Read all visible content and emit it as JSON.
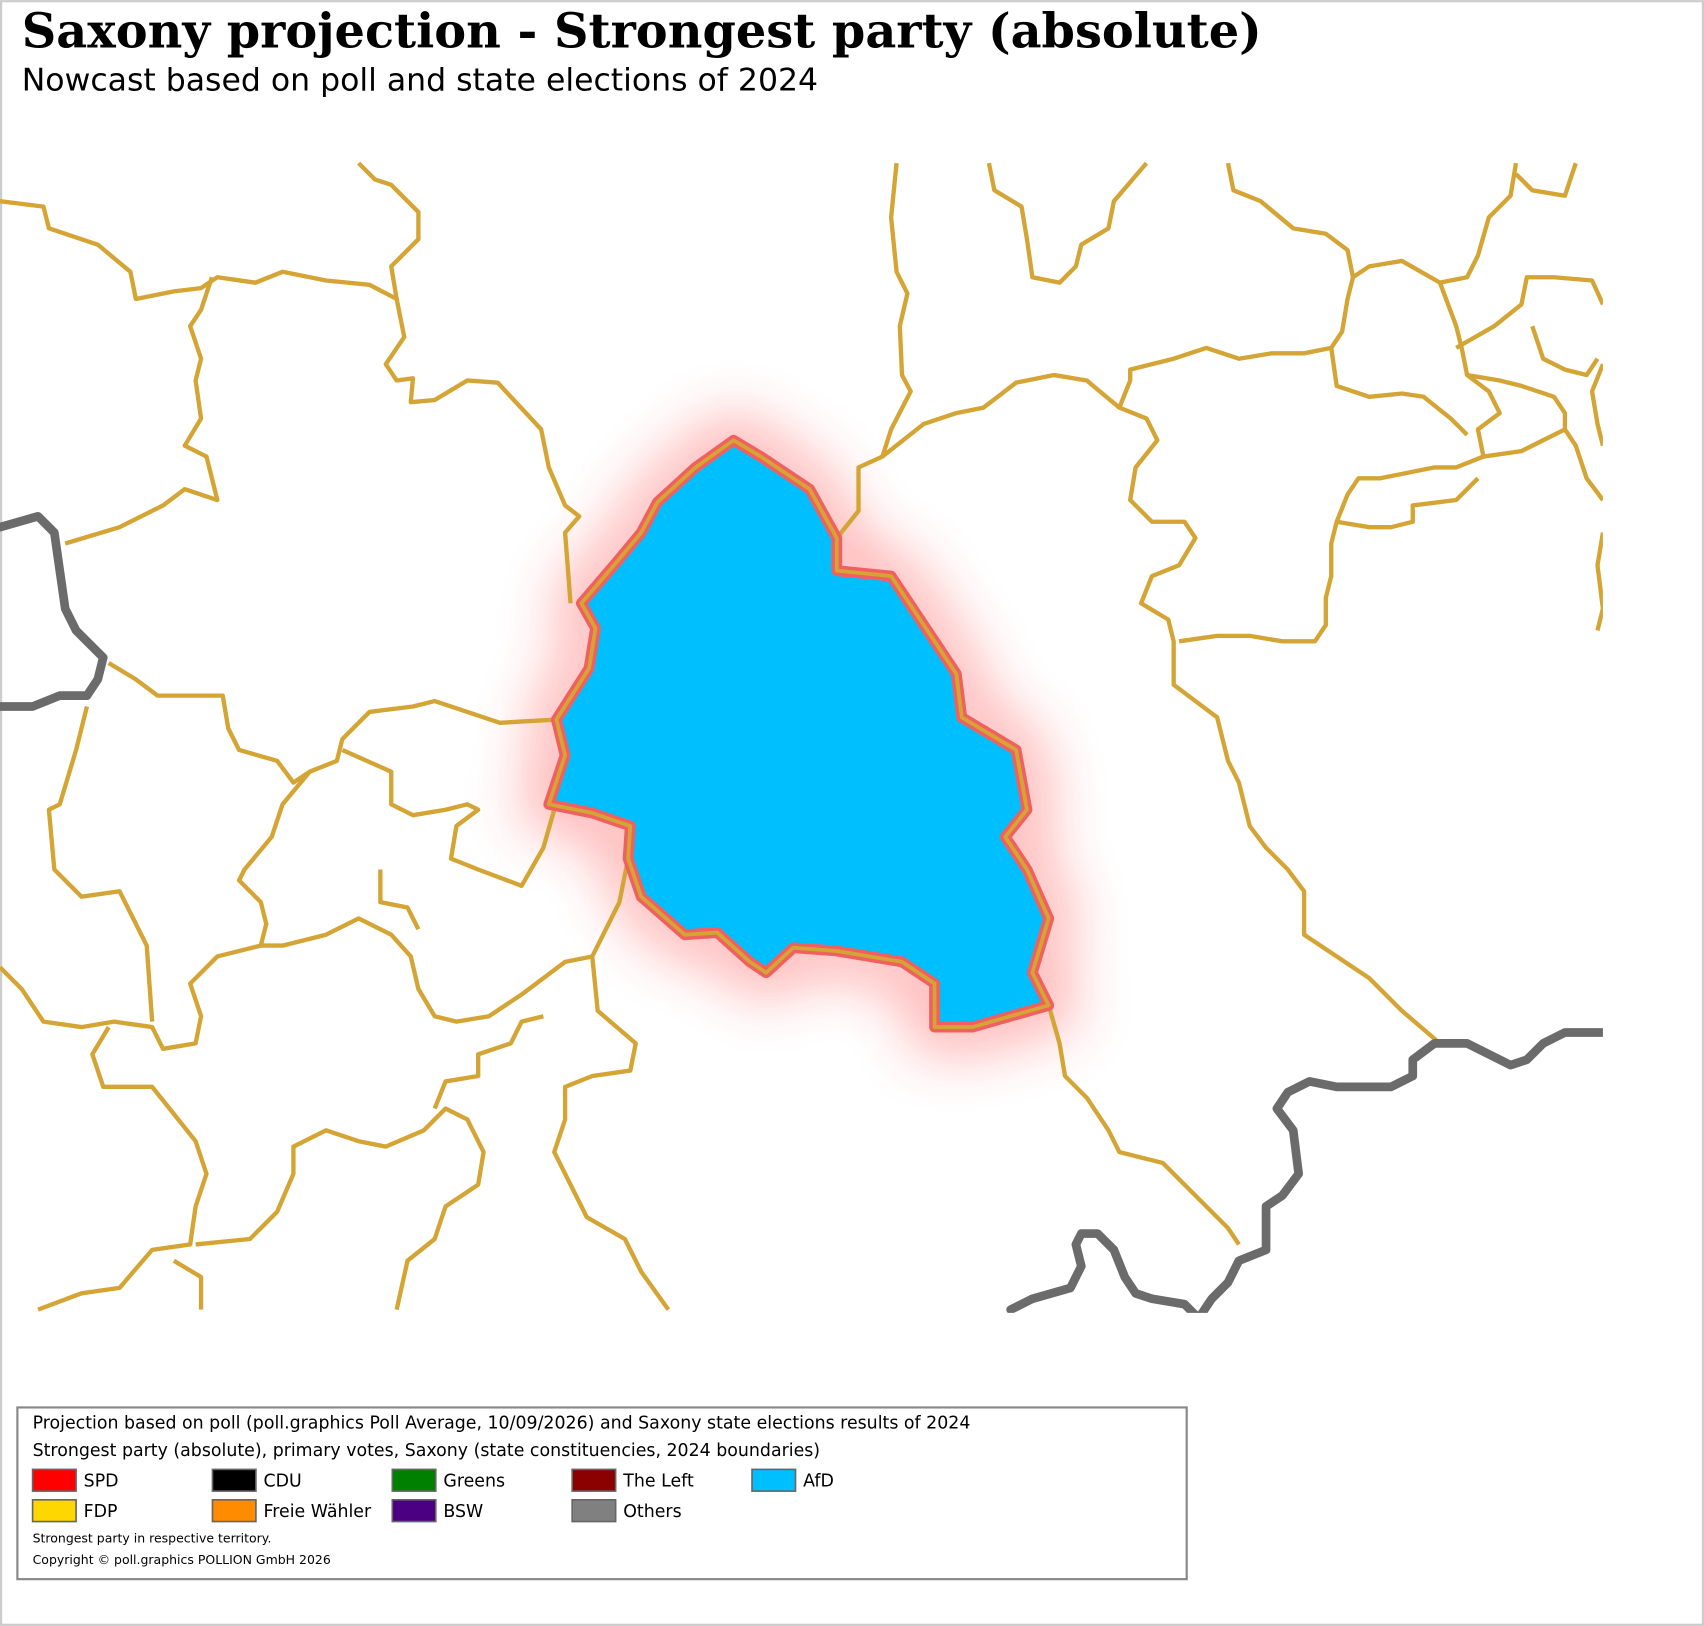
{
  "header": {
    "title": "Saxony projection - Strongest party (absolute)",
    "subtitle": "Nowcast based on poll and state elections of 2024"
  },
  "legend": {
    "line1": "Projection based on poll (poll.graphics Poll Average, 10/09/2026) and Saxony state elections results of 2024",
    "line2": "Strongest party (absolute), primary votes, Saxony (state constituencies, 2024 boundaries)",
    "items": [
      {
        "label": "SPD",
        "color": "#ff0000"
      },
      {
        "label": "CDU",
        "color": "#000000"
      },
      {
        "label": "Greens",
        "color": "#008000"
      },
      {
        "label": "The Left",
        "color": "#8b0000"
      },
      {
        "label": "AfD",
        "color": "#00bfff"
      },
      {
        "label": "FDP",
        "color": "#ffd700"
      },
      {
        "label": "Freie Wähler",
        "color": "#ff8c00"
      },
      {
        "label": "BSW",
        "color": "#4b0082"
      },
      {
        "label": "Others",
        "color": "#808080"
      }
    ],
    "note": "Strongest party in respective territory.",
    "copyright": "Copyright © poll.graphics POLLION GmbH 2026"
  }
}
